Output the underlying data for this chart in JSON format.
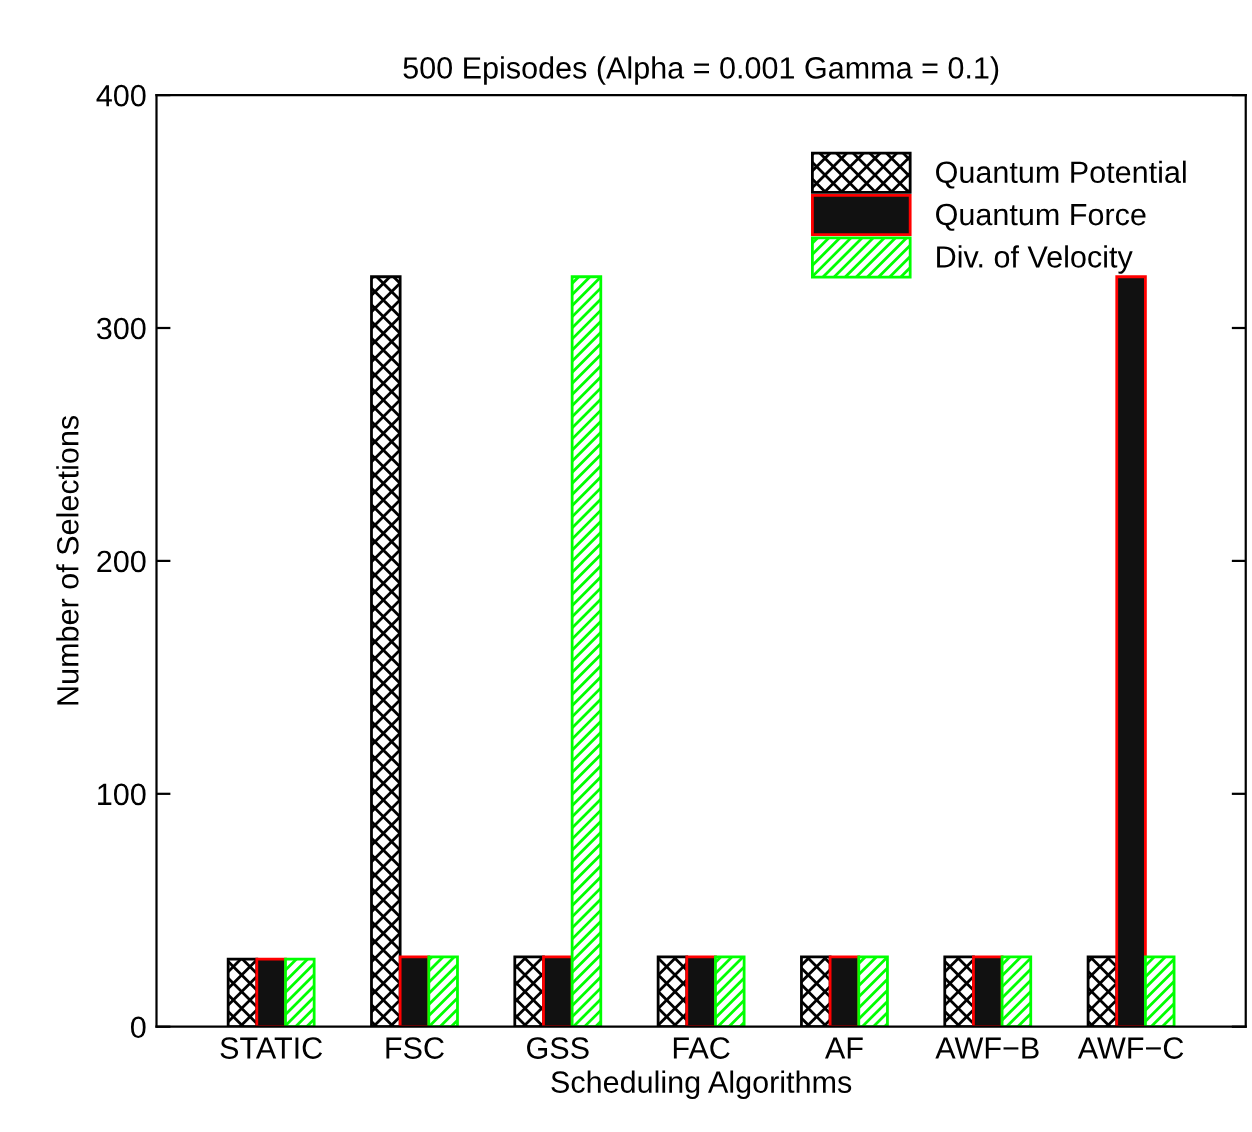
{
  "chart_data": {
    "type": "bar",
    "title": "500 Episodes (Alpha = 0.001 Gamma = 0.1)",
    "xlabel": "Scheduling Algorithms",
    "ylabel": "Number of Selections",
    "categories": [
      "STATIC",
      "FSC",
      "GSS",
      "FAC",
      "AF",
      "AWF−B",
      "AWF−C"
    ],
    "series": [
      {
        "name": "Quantum Potential",
        "color": "#000000",
        "values": [
          29,
          322,
          30,
          30,
          30,
          30,
          30
        ]
      },
      {
        "name": "Quantum Force",
        "color": "#ff0000",
        "values": [
          29,
          30,
          30,
          30,
          30,
          30,
          322
        ]
      },
      {
        "name": "Div. of Velocity",
        "color": "#00ff00",
        "values": [
          29,
          30,
          322,
          30,
          30,
          30,
          30
        ]
      }
    ],
    "ylim": [
      0,
      400
    ],
    "yticks": [
      0,
      100,
      200,
      300,
      400
    ],
    "grid": false,
    "legend": "top right"
  }
}
